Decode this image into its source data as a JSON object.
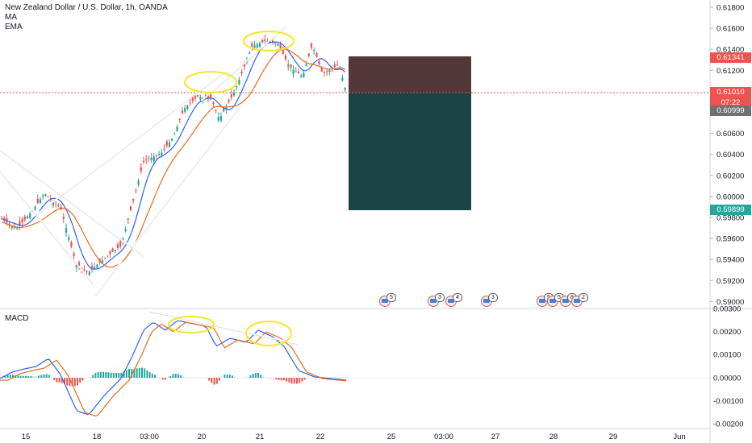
{
  "legend": {
    "symbol_title": "New Zealand Dollar / U.S. Dollar, 1h, OANDA",
    "indicators": [
      "MA",
      "EMA"
    ],
    "macd_label": "MACD"
  },
  "price_axis": {
    "ticks": [
      "0.61800",
      "0.61600",
      "0.61400",
      "0.61200",
      "0.61000",
      "0.60800",
      "0.60600",
      "0.60400",
      "0.60200",
      "0.60000",
      "0.59800",
      "0.59600",
      "0.59400",
      "0.59200",
      "0.59000"
    ],
    "tags": [
      {
        "label": "0.61341",
        "color": "#ef5350"
      },
      {
        "label": "0.61010",
        "color": "#ef5350"
      },
      {
        "label": "07:22",
        "color": "#ef5350"
      },
      {
        "label": "0.60999",
        "color": "#707070"
      },
      {
        "label": "0.59899",
        "color": "#26a69a"
      }
    ]
  },
  "macd_axis": {
    "ticks": [
      "0.00300",
      "0.00200",
      "0.00100",
      "0.00000",
      "-0.00100",
      "-0.00200"
    ]
  },
  "time_axis": {
    "ticks": [
      "15",
      "18",
      "03:00",
      "20",
      "21",
      "22",
      "25",
      "03:00",
      "27",
      "28",
      "29",
      "Jun"
    ]
  },
  "events": [
    {
      "count": "5"
    },
    {
      "count": "3"
    },
    {
      "count": "4"
    },
    {
      "count": "3"
    },
    {
      "count": "5"
    },
    {
      "count": "5"
    },
    {
      "count": "8"
    },
    {
      "count": "2"
    }
  ],
  "colors": {
    "up": "#26a69a",
    "down": "#ef5350",
    "ma": "#2962ff",
    "ema": "#e86a1a",
    "stop_zone": "#4a2c2e",
    "target_zone": "#0f3a3c",
    "highlight": "#f5e628",
    "macd_line": "#2962ff",
    "signal_line": "#e86a1a"
  },
  "chart_data": {
    "type": "candlestick",
    "symbol": "New Zealand Dollar / U.S. Dollar",
    "timeframe": "1h",
    "price_range": [
      0.59,
      0.619
    ],
    "last_price": 0.6101,
    "position_tool": {
      "stop": 0.61341,
      "entry": 0.60999,
      "target": 0.59899
    },
    "macd_range": [
      -0.0023,
      0.003
    ]
  }
}
